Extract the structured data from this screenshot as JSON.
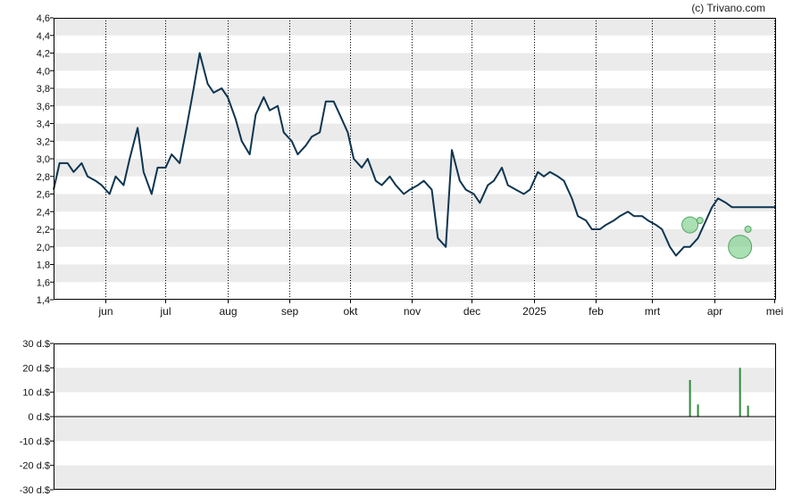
{
  "copyright": "(c) Trivano.com",
  "colors": {
    "line": "#0d3550",
    "band": "#ebebeb",
    "bar": "#2e8b3a",
    "marker": "#7ccf8a",
    "marker_edge": "#4fa561"
  },
  "chart_data": [
    {
      "type": "line",
      "title": "",
      "xlabel": "",
      "ylabel": "",
      "ylim": [
        1.4,
        4.6
      ],
      "yticks": [
        "1,4",
        "1,6",
        "1,8",
        "2,0",
        "2,2",
        "2,4",
        "2,6",
        "2,8",
        "3,0",
        "3,2",
        "3,4",
        "3,6",
        "3,8",
        "4,0",
        "4,2",
        "4,4",
        "4,6"
      ],
      "xticks": [
        "jun",
        "jul",
        "aug",
        "sep",
        "okt",
        "nov",
        "dec",
        "2025",
        "feb",
        "mrt",
        "apr",
        "mei"
      ],
      "grid": "alternating horizontal bands, dotted vertical month lines",
      "series": [
        {
          "x": [
            "2024-05-06",
            "2024-05-09",
            "2024-05-13",
            "2024-05-16",
            "2024-05-20",
            "2024-05-23",
            "2024-05-27",
            "2024-05-30",
            "2024-06-03",
            "2024-06-06",
            "2024-06-10",
            "2024-06-13",
            "2024-06-17",
            "2024-06-20",
            "2024-06-24",
            "2024-06-27",
            "2024-07-01",
            "2024-07-04",
            "2024-07-08",
            "2024-07-11",
            "2024-07-15",
            "2024-07-18",
            "2024-07-22",
            "2024-07-25",
            "2024-07-29",
            "2024-08-01",
            "2024-08-05",
            "2024-08-08",
            "2024-08-12",
            "2024-08-15",
            "2024-08-19",
            "2024-08-22",
            "2024-08-26",
            "2024-08-29",
            "2024-09-02",
            "2024-09-05",
            "2024-09-09",
            "2024-09-12",
            "2024-09-16",
            "2024-09-19",
            "2024-09-23",
            "2024-09-26",
            "2024-09-30",
            "2024-10-03",
            "2024-10-07",
            "2024-10-10",
            "2024-10-14",
            "2024-10-17",
            "2024-10-21",
            "2024-10-24",
            "2024-10-28",
            "2024-10-31",
            "2024-11-04",
            "2024-11-07",
            "2024-11-11",
            "2024-11-14",
            "2024-11-18",
            "2024-11-21",
            "2024-11-25",
            "2024-11-28",
            "2024-12-02",
            "2024-12-05",
            "2024-12-09",
            "2024-12-12",
            "2024-12-16",
            "2024-12-19",
            "2024-12-23",
            "2024-12-27",
            "2024-12-30",
            "2025-01-03",
            "2025-01-06",
            "2025-01-09",
            "2025-01-13",
            "2025-01-16",
            "2025-01-20",
            "2025-01-23",
            "2025-01-27",
            "2025-01-30",
            "2025-02-03",
            "2025-02-06",
            "2025-02-10",
            "2025-02-13",
            "2025-02-17",
            "2025-02-20",
            "2025-02-24",
            "2025-02-27",
            "2025-03-03",
            "2025-03-06",
            "2025-03-10",
            "2025-03-13",
            "2025-03-17",
            "2025-03-20",
            "2025-03-24",
            "2025-03-27",
            "2025-03-31",
            "2025-04-03",
            "2025-04-07",
            "2025-04-10",
            "2025-04-14",
            "2025-04-17",
            "2025-04-22",
            "2025-04-25",
            "2025-04-29",
            "2025-05-02"
          ],
          "y": [
            2.65,
            2.95,
            2.95,
            2.85,
            2.95,
            2.8,
            2.75,
            2.7,
            2.6,
            2.8,
            2.7,
            3.0,
            3.35,
            2.85,
            2.6,
            2.9,
            2.9,
            3.05,
            2.95,
            3.3,
            3.8,
            4.2,
            3.85,
            3.75,
            3.8,
            3.7,
            3.45,
            3.2,
            3.05,
            3.5,
            3.7,
            3.55,
            3.6,
            3.3,
            3.2,
            3.05,
            3.15,
            3.25,
            3.3,
            3.65,
            3.65,
            3.5,
            3.3,
            3.0,
            2.9,
            3.0,
            2.75,
            2.7,
            2.8,
            2.7,
            2.6,
            2.65,
            2.7,
            2.75,
            2.65,
            2.1,
            2.0,
            3.1,
            2.75,
            2.65,
            2.6,
            2.5,
            2.7,
            2.75,
            2.9,
            2.7,
            2.65,
            2.6,
            2.65,
            2.85,
            2.8,
            2.85,
            2.8,
            2.75,
            2.55,
            2.35,
            2.3,
            2.2,
            2.2,
            2.25,
            2.3,
            2.35,
            2.4,
            2.35,
            2.35,
            2.3,
            2.25,
            2.2,
            2.0,
            1.9,
            2.0,
            2.0,
            2.1,
            2.25,
            2.45,
            2.55,
            2.5,
            2.45,
            2.45,
            2.45,
            2.45,
            2.45,
            2.45,
            2.45
          ]
        }
      ],
      "markers": [
        {
          "x": "2025-03-20",
          "y": 2.25,
          "size": "medium"
        },
        {
          "x": "2025-03-25",
          "y": 2.3,
          "size": "small"
        },
        {
          "x": "2025-04-14",
          "y": 2.0,
          "size": "large"
        },
        {
          "x": "2025-04-18",
          "y": 2.2,
          "size": "small"
        }
      ]
    },
    {
      "type": "bar",
      "title": "",
      "xlabel": "",
      "ylabel": "",
      "ylim": [
        -30,
        30
      ],
      "yticks": [
        "30 d.$",
        "20 d.$",
        "10 d.$",
        "0 d.$",
        "-10 d.$",
        "-20 d.$",
        "-30 d.$"
      ],
      "grid": "alternating horizontal bands",
      "bars": [
        {
          "x": "2025-03-20",
          "value": 15
        },
        {
          "x": "2025-03-24",
          "value": 5
        },
        {
          "x": "2025-04-14",
          "value": 20
        },
        {
          "x": "2025-04-18",
          "value": 4.5
        }
      ]
    }
  ]
}
